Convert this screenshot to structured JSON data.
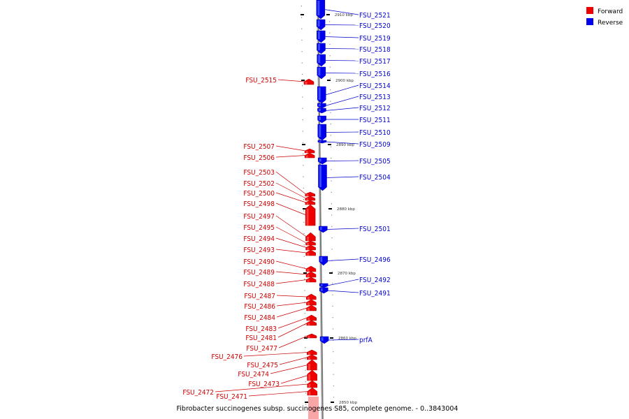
{
  "caption": "Fibrobacter succinogenes subsp. succinogenes S85, complete genome. - 0..3843004",
  "legend": [
    {
      "label": "Forward",
      "color": "#ee0000"
    },
    {
      "label": "Reverse",
      "color": "#0000ee"
    }
  ],
  "scale_ticks": [
    {
      "label": "2910 kbp"
    },
    {
      "label": "2900 kbp"
    },
    {
      "label": "2890 kbp"
    },
    {
      "label": "2880 kbp"
    },
    {
      "label": "2870 kbp"
    },
    {
      "label": "2860 kbp"
    },
    {
      "label": "2850 kbp"
    }
  ],
  "reverse_genes": [
    "FSU_2521",
    "FSU_2520",
    "FSU_2519",
    "FSU_2518",
    "FSU_2517",
    "FSU_2516",
    "FSU_2514",
    "FSU_2513",
    "FSU_2512",
    "FSU_2511",
    "FSU_2510",
    "FSU_2509",
    "FSU_2505",
    "FSU_2504",
    "FSU_2501",
    "FSU_2496",
    "FSU_2492",
    "FSU_2491",
    "prfA"
  ],
  "forward_genes": [
    "FSU_2515",
    "FSU_2507",
    "FSU_2506",
    "FSU_2503",
    "FSU_2502",
    "FSU_2500",
    "FSU_2498",
    "FSU_2497",
    "FSU_2495",
    "FSU_2494",
    "FSU_2493",
    "FSU_2490",
    "FSU_2489",
    "FSU_2488",
    "FSU_2487",
    "FSU_2486",
    "FSU_2484",
    "FSU_2483",
    "FSU_2481",
    "FSU_2477",
    "FSU_2476",
    "FSU_2475",
    "FSU_2474",
    "FSU_2473",
    "FSU_2472",
    "FSU_2471"
  ]
}
